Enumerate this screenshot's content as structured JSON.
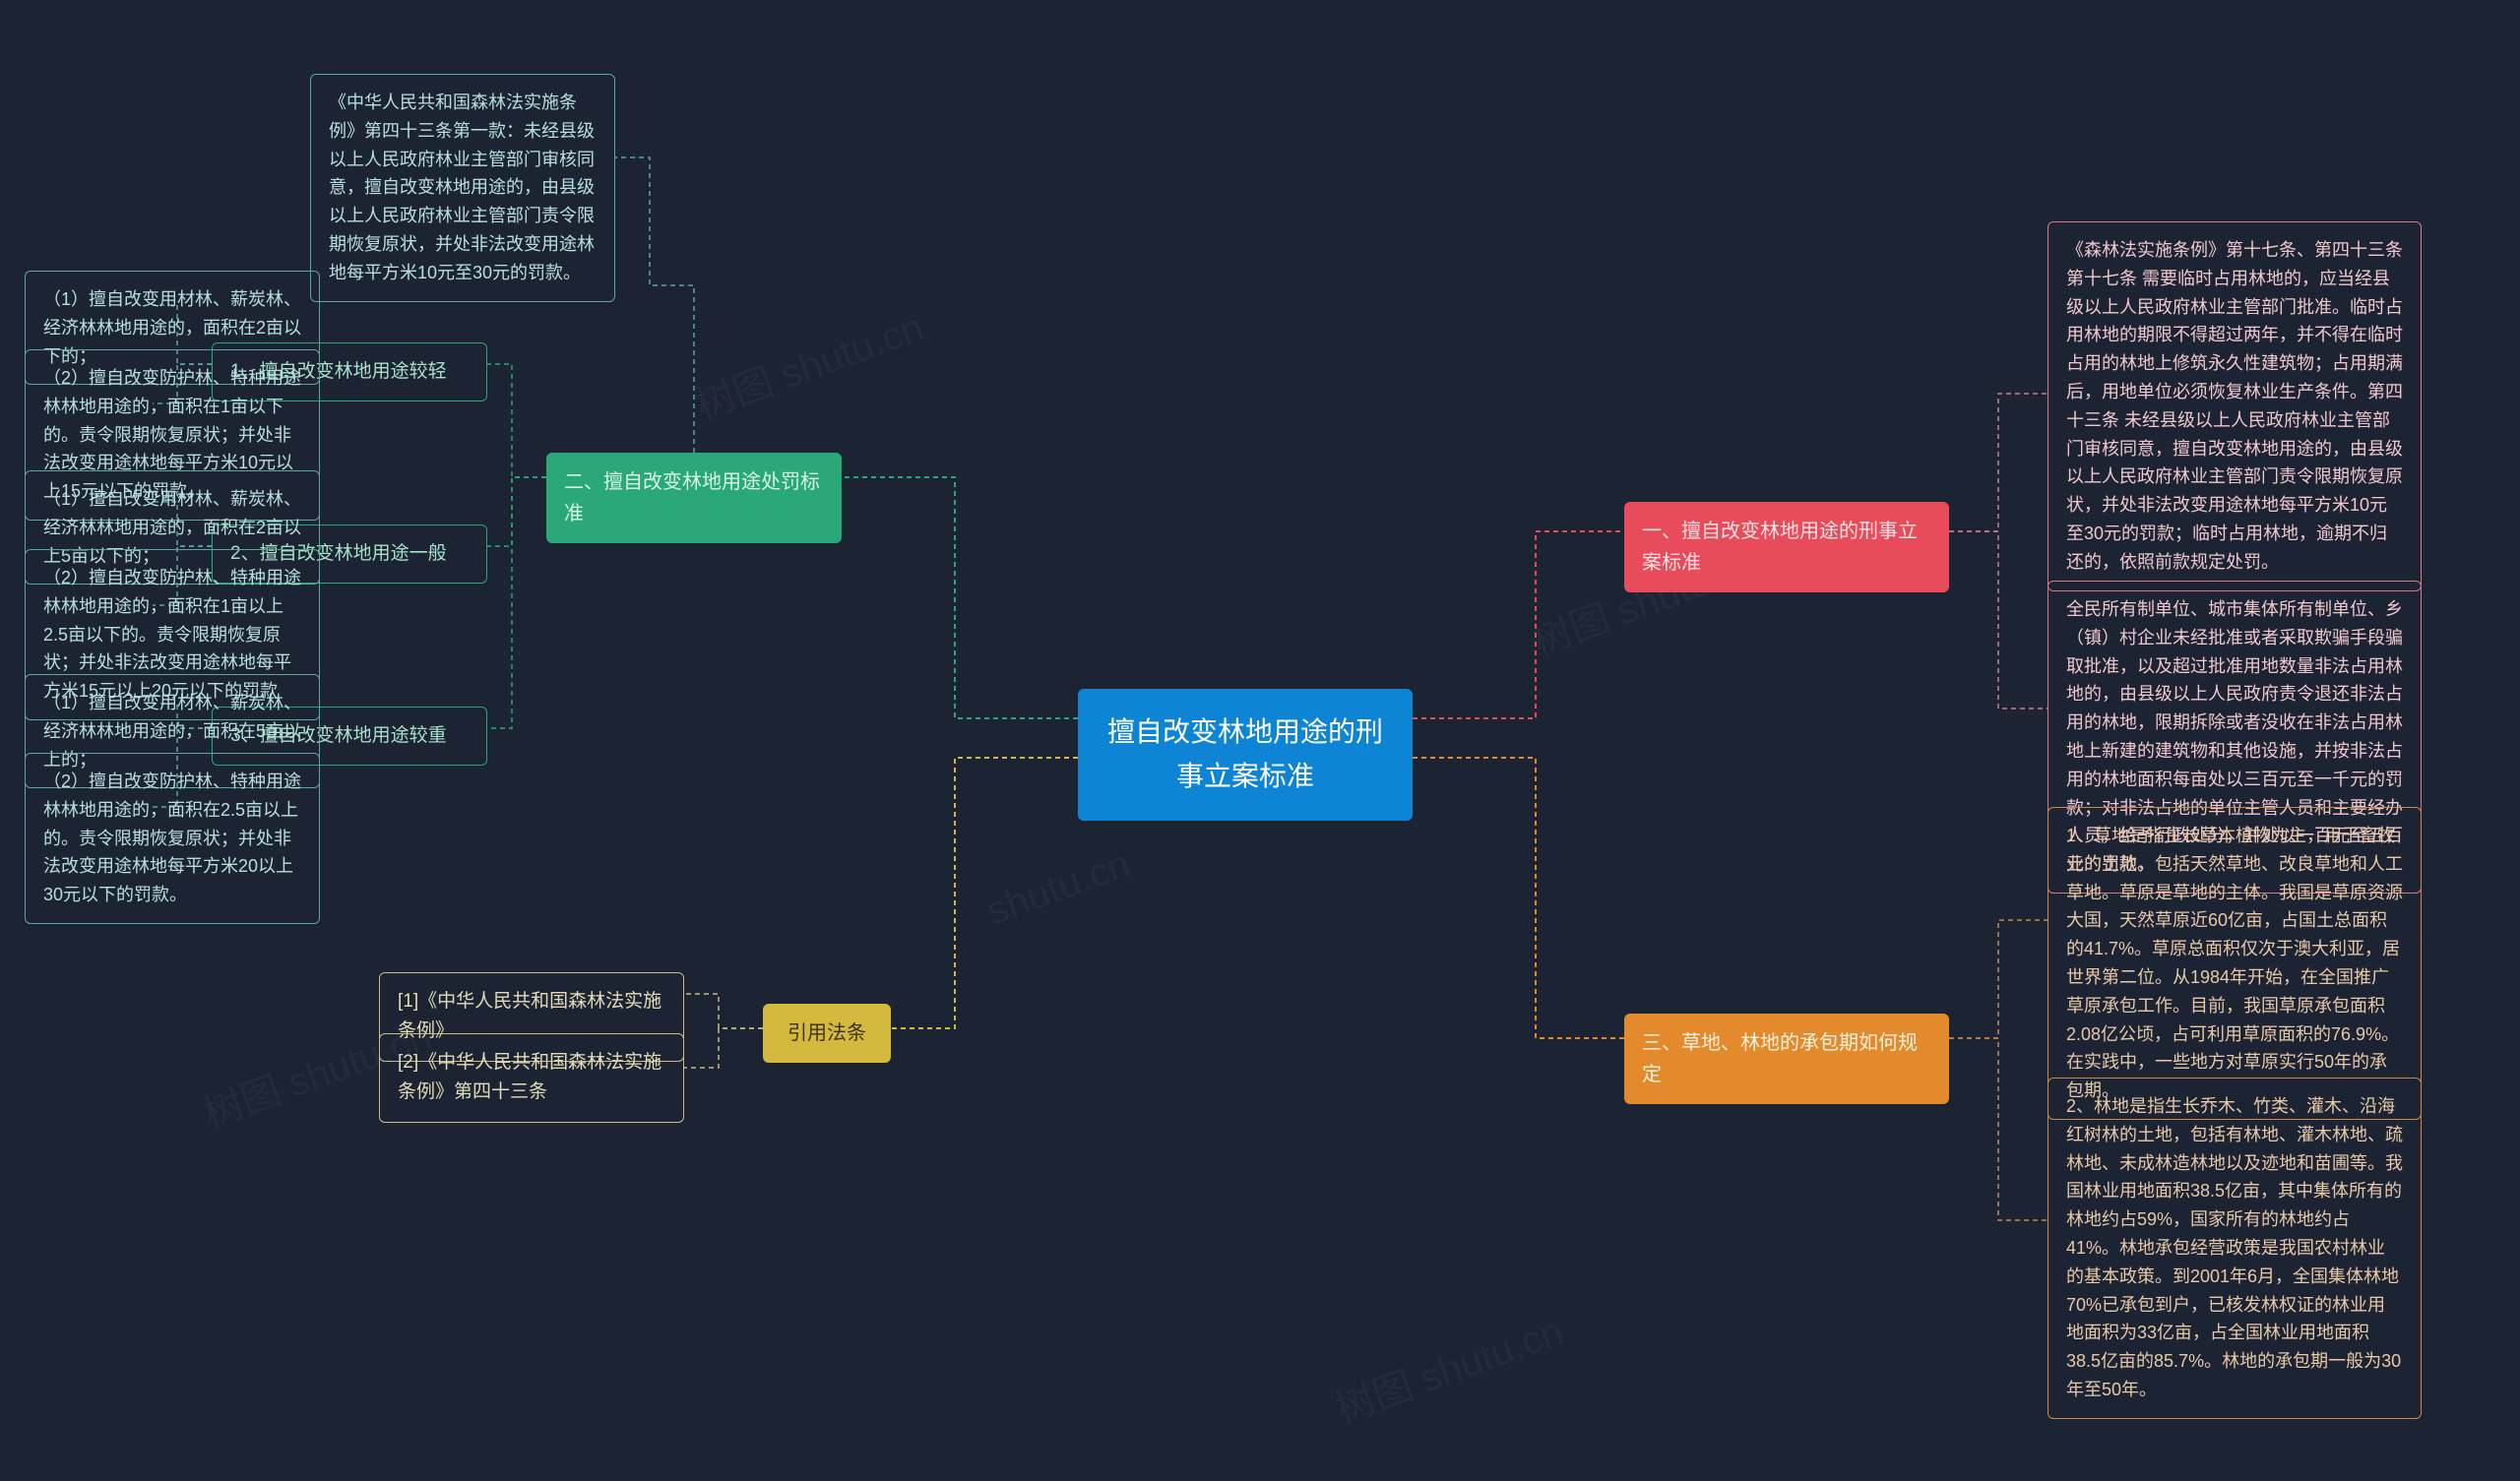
{
  "root": {
    "title": "擅自改变林地用途的刑事立案标准"
  },
  "branch1": {
    "title": "一、擅自改变林地用途的刑事立案标准",
    "leaf1": "《森林法实施条例》第十七条、第四十三条第十七条 需要临时占用林地的，应当经县级以上人民政府林业主管部门批准。临时占用林地的期限不得超过两年，并不得在临时占用的林地上修筑永久性建筑物；占用期满后，用地单位必须恢复林业生产条件。第四十三条 未经县级以上人民政府林业主管部门审核同意，擅自改变林地用途的，由县级以上人民政府林业主管部门责令限期恢复原状，并处非法改变用途林地每平方米10元至30元的罚款；临时占用林地，逾期不归还的，依照前款规定处罚。",
    "leaf2": "全民所有制单位、城市集体所有制单位、乡（镇）村企业未经批准或者采取欺骗手段骗取批准，以及超过批准用地数量非法占用林地的，由县级以上人民政府责令退还非法占用的林地，限期拆除或者没收在非法占用林地上新建的建筑物和其他设施，并按非法占用的林地面积每亩处以三百元至一千元的罚款；对非法占地的单位主管人员和主要经办人员，给予行政处分，并处以一百元至五百元的罚款。"
  },
  "branch2": {
    "title": "二、擅自改变林地用途处罚标准",
    "intro": "《中华人民共和国森林法实施条例》第四十三条第一款：未经县级以上人民政府林业主管部门审核同意，擅自改变林地用途的，由县级以上人民政府林业主管部门责令限期恢复原状，并处非法改变用途林地每平方米10元至30元的罚款。",
    "sub1": "1、擅自改变林地用途较轻",
    "sub1_1": "（1）擅自改变用材林、薪炭林、经济林林地用途的，面积在2亩以下的；",
    "sub1_2": "（2）擅自改变防护林、特种用途林林地用途的，面积在1亩以下的。责令限期恢复原状；并处非法改变用途林地每平方米10元以上15元以下的罚款。",
    "sub2": "2、擅自改变林地用途一般",
    "sub2_1": "（1）擅自改变用材林、薪炭林、经济林林地用途的，面积在2亩以上5亩以下的；",
    "sub2_2": "（2）擅自改变防护林、特种用途林林地用途的，面积在1亩以上2.5亩以下的。责令限期恢复原状；并处非法改变用途林地每平方米15元以上20元以下的罚款",
    "sub3": "3、擅自改变林地用途较重",
    "sub3_1": "（1）擅自改变用材林、薪炭林、经济林林地用途的，面积在5亩以上的；",
    "sub3_2": "（2）擅自改变防护林、特种用途林林地用途的，面积在2.5亩以上的。责令限期恢复原状；并处非法改变用途林地每平方米20以上30元以下的罚款。"
  },
  "branch3": {
    "title": "三、草地、林地的承包期如何规定",
    "leaf1": "1、草地是指生长草本植物为主，用于畜牧业的土地，包括天然草地、改良草地和人工草地。草原是草地的主体。我国是草原资源大国，天然草原近60亿亩，占国土总面积的41.7%。草原总面积仅次于澳大利亚，居世界第二位。从1984年开始，在全国推广草原承包工作。目前，我国草原承包面积2.08亿公顷，占可利用草原面积的76.9%。在实践中，一些地方对草原实行50年的承包期。",
    "leaf2": "2、林地是指生长乔木、竹类、灌木、沿海红树林的土地，包括有林地、灌木林地、疏林地、未成林造林地以及迹地和苗圃等。我国林业用地面积38.5亿亩，其中集体所有的林地约占59%，国家所有的林地约占41%。林地承包经营政策是我国农村林业的基本政策。到2001年6月，全国集体林地70%已承包到户，已核发林权证的林业用地面积为33亿亩，占全国林业用地面积38.5亿亩的85.7%。林地的承包期一般为30年至50年。"
  },
  "branch4": {
    "title": "引用法条",
    "leaf1": "[1]《中华人民共和国森林法实施条例》",
    "leaf2": "[2]《中华人民共和国森林法实施条例》第四十三条"
  },
  "colors": {
    "bg": "#1c2333",
    "root": "#0d84d4",
    "b1": "#e84c5b",
    "b2": "#2aa876",
    "b3": "#e38b2c",
    "b4": "#d4b93f"
  }
}
